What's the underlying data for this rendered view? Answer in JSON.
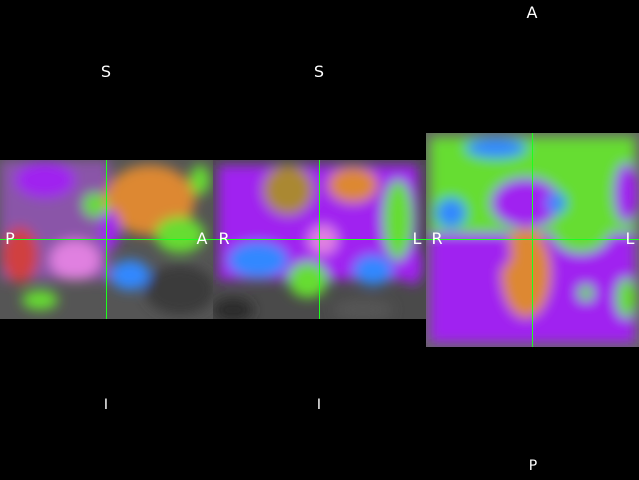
{
  "views": {
    "sagittal": {
      "top": "S",
      "bottom": "I",
      "left": "P",
      "right": "A"
    },
    "coronal": {
      "top": "S",
      "bottom": "I",
      "left": "R",
      "right": "L"
    },
    "axial": {
      "top": "A",
      "bottom": "P",
      "left": "R",
      "right": "L"
    }
  },
  "crosshair_color": "#1cff1c",
  "overlay_colors": [
    "#a020f0",
    "#66dd33",
    "#dd8833",
    "#3388ff",
    "#777777"
  ]
}
